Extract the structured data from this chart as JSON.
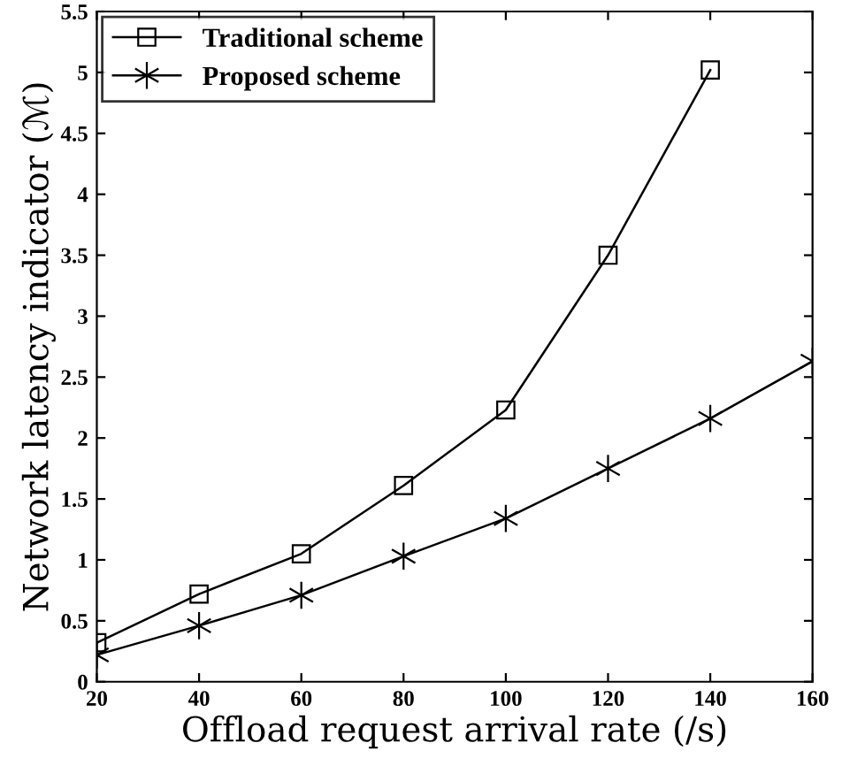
{
  "chart_data": {
    "type": "line",
    "xlabel": "Offload request arrival rate (/s)",
    "ylabel": "Network latency indicator (ℳ)",
    "x": [
      20,
      40,
      60,
      80,
      100,
      120,
      140,
      160
    ],
    "series": [
      {
        "name": "Traditional scheme",
        "color": "#000000",
        "marker": "square",
        "values": [
          0.32,
          0.72,
          1.05,
          1.61,
          2.23,
          3.5,
          5.02,
          null
        ]
      },
      {
        "name": "Proposed scheme",
        "color": "#000000",
        "marker": "cross",
        "values": [
          0.22,
          0.46,
          0.71,
          1.03,
          1.34,
          1.75,
          2.16,
          2.63
        ]
      }
    ],
    "xlim": [
      20,
      160
    ],
    "xticks": [
      20,
      40,
      60,
      80,
      100,
      120,
      140,
      160
    ],
    "ylim": [
      0,
      5.5
    ],
    "yticks": [
      0,
      0.5,
      1,
      1.5,
      2,
      2.5,
      3,
      3.5,
      4,
      4.5,
      5,
      5.5
    ],
    "grid": false,
    "legend": "top left",
    "line_style": "solid"
  }
}
